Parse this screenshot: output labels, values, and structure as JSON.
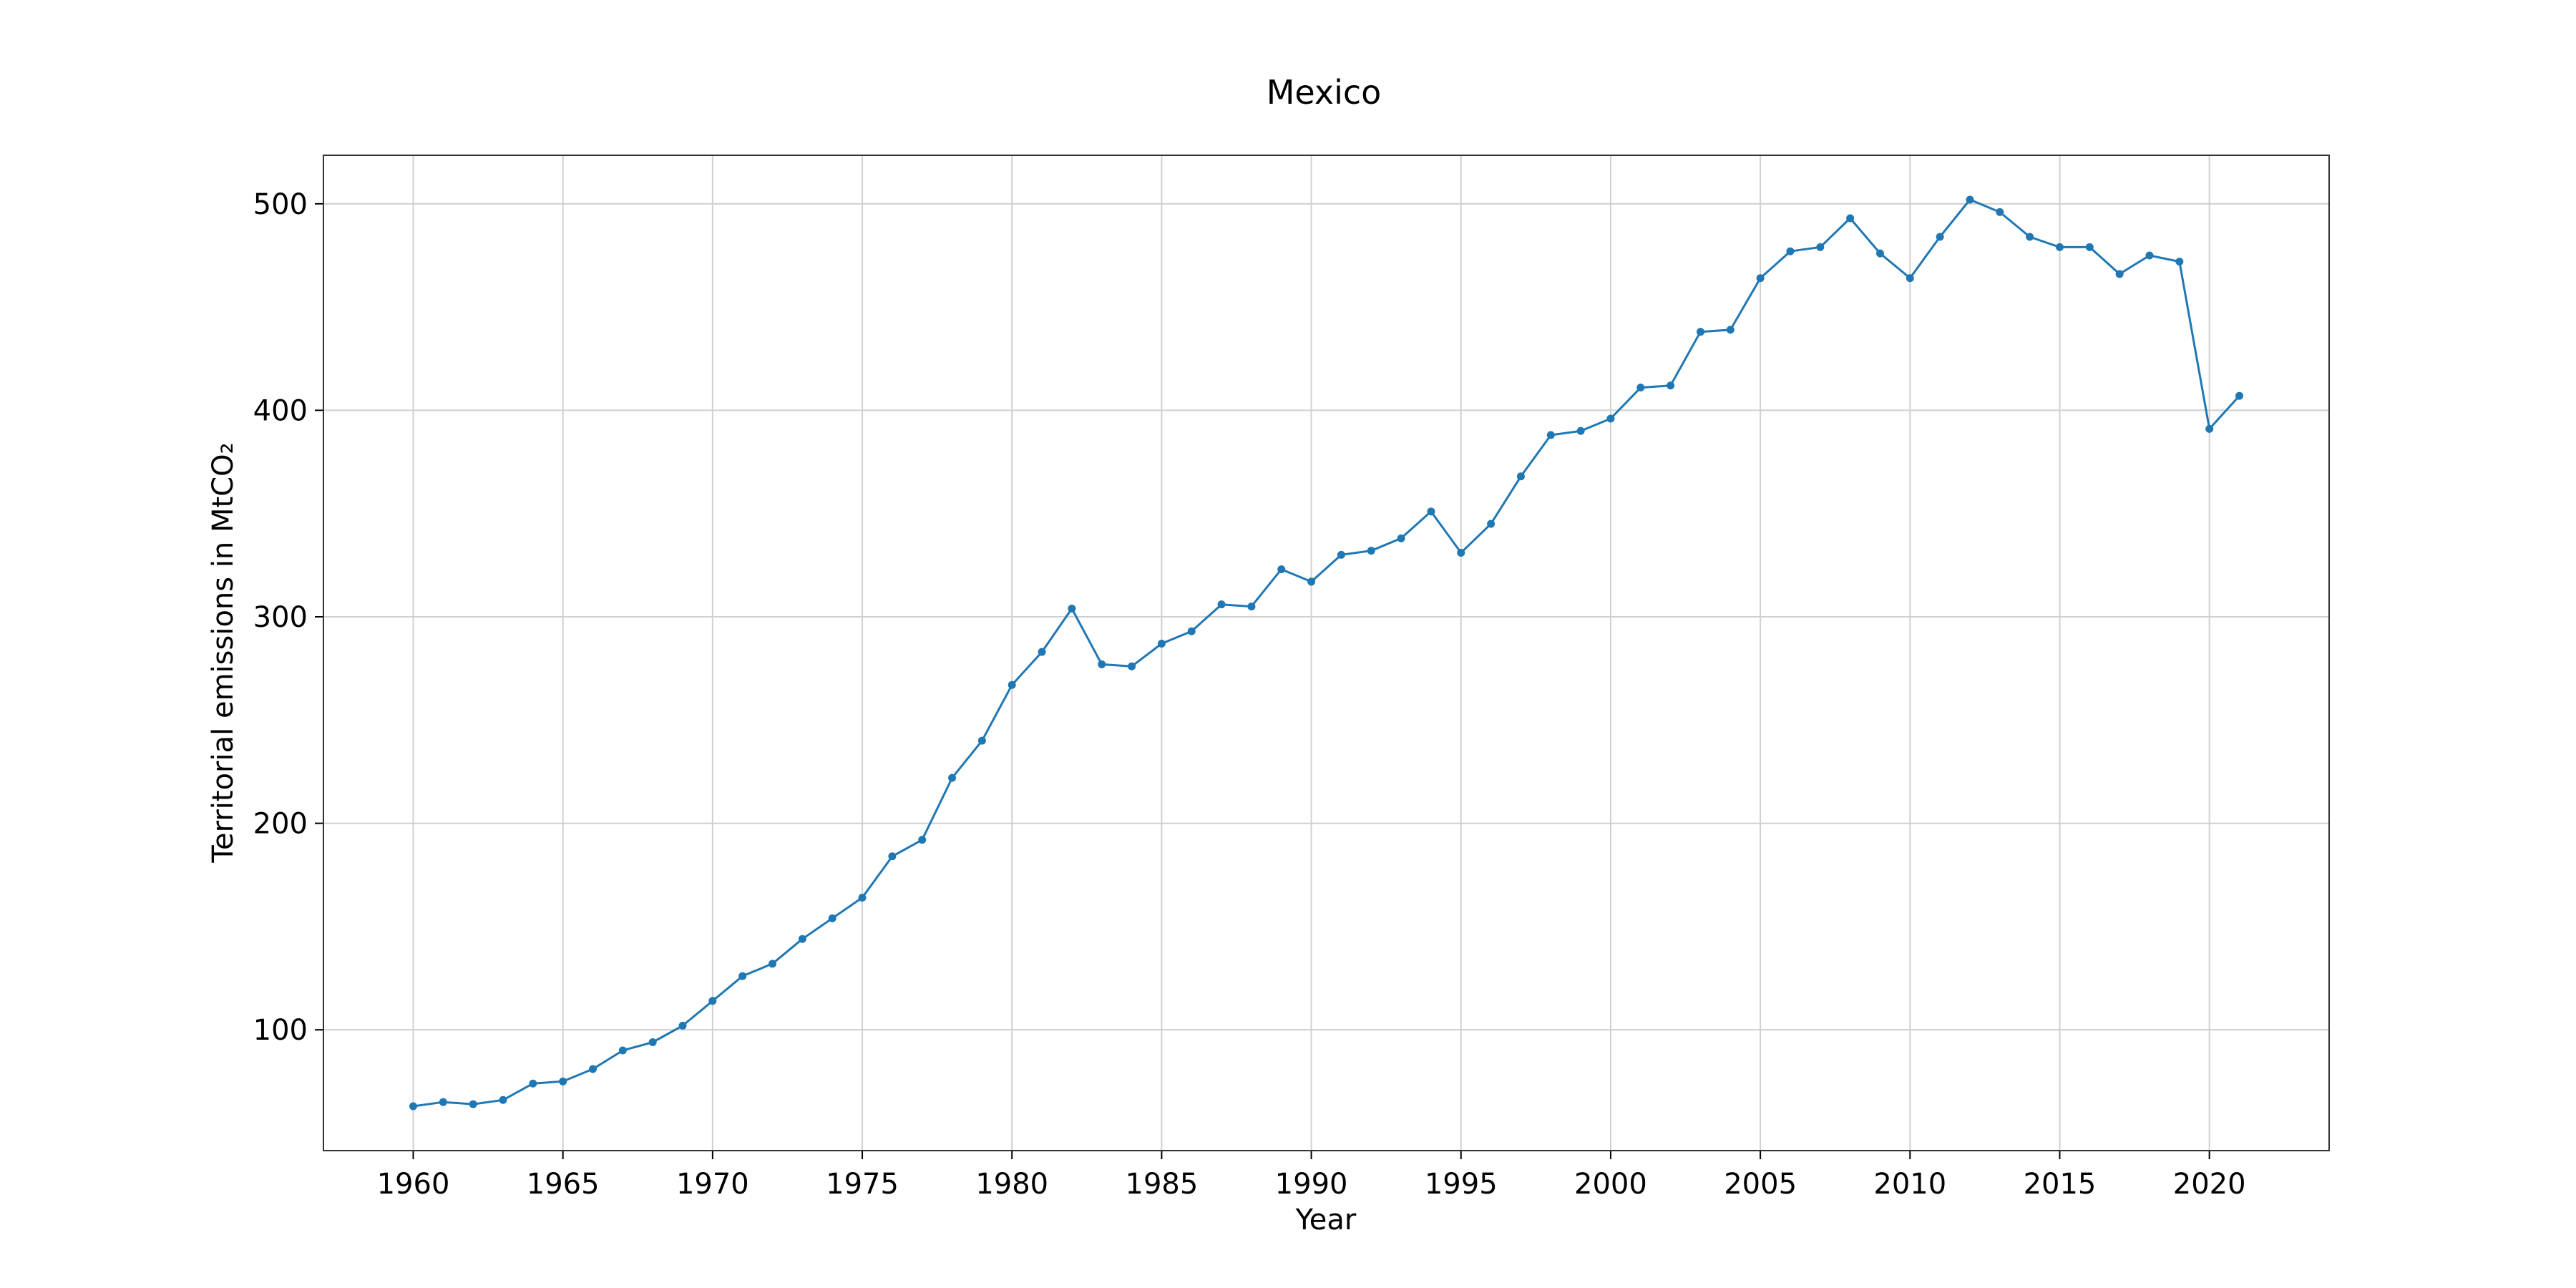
{
  "chart_data": {
    "type": "line",
    "title": "Mexico",
    "xlabel": "Year",
    "ylabel": "Territorial emissions in MtCO₂",
    "xlim": [
      1957,
      2024
    ],
    "ylim": [
      41.5,
      523.5
    ],
    "xticks": [
      1960,
      1965,
      1970,
      1975,
      1980,
      1985,
      1990,
      1995,
      2000,
      2005,
      2010,
      2015,
      2020
    ],
    "yticks": [
      100,
      200,
      300,
      400,
      500
    ],
    "grid": true,
    "line_color": "#1f77b4",
    "marker": "circle",
    "x": [
      1960,
      1961,
      1962,
      1963,
      1964,
      1965,
      1966,
      1967,
      1968,
      1969,
      1970,
      1971,
      1972,
      1973,
      1974,
      1975,
      1976,
      1977,
      1978,
      1979,
      1980,
      1981,
      1982,
      1983,
      1984,
      1985,
      1986,
      1987,
      1988,
      1989,
      1990,
      1991,
      1992,
      1993,
      1994,
      1995,
      1996,
      1997,
      1998,
      1999,
      2000,
      2001,
      2002,
      2003,
      2004,
      2005,
      2006,
      2007,
      2008,
      2009,
      2010,
      2011,
      2012,
      2013,
      2014,
      2015,
      2016,
      2017,
      2018,
      2019,
      2020,
      2021
    ],
    "y": [
      63,
      65,
      64,
      66,
      74,
      75,
      81,
      90,
      94,
      102,
      114,
      126,
      132,
      144,
      154,
      164,
      184,
      192,
      222,
      240,
      267,
      283,
      304,
      277,
      276,
      287,
      293,
      306,
      305,
      323,
      317,
      330,
      332,
      338,
      351,
      331,
      345,
      368,
      388,
      390,
      396,
      411,
      412,
      438,
      439,
      464,
      477,
      479,
      493,
      476,
      464,
      484,
      502,
      496,
      484,
      479,
      479,
      466,
      475,
      472,
      391,
      407
    ]
  }
}
